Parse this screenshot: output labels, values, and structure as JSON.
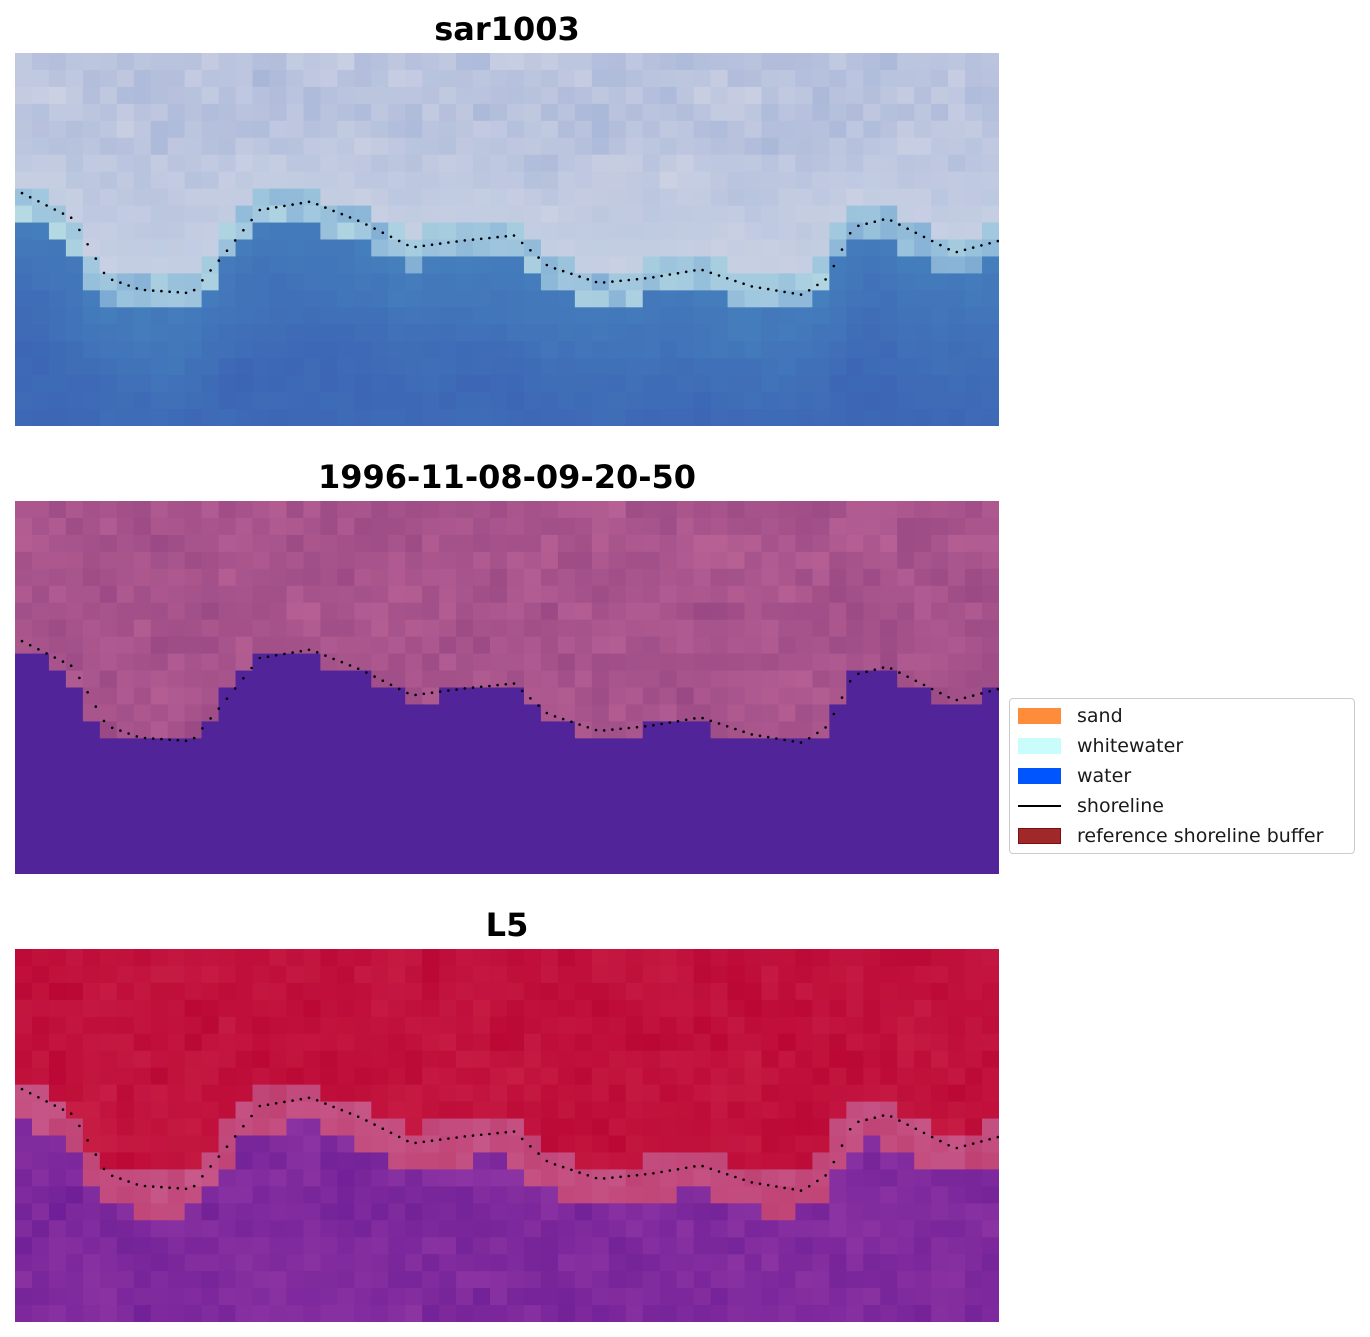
{
  "panels": [
    {
      "title": "sar1003",
      "style": "rgb"
    },
    {
      "title": "1996-11-08-09-20-50",
      "style": "classified"
    },
    {
      "title": "L5",
      "style": "index"
    }
  ],
  "legend": {
    "items": [
      {
        "label": "sand",
        "type": "patch",
        "color": "#ff8c3a"
      },
      {
        "label": "whitewater",
        "type": "patch",
        "color": "#c8fdfb"
      },
      {
        "label": "water",
        "type": "patch",
        "color": "#0055ff"
      },
      {
        "label": "shoreline",
        "type": "line",
        "color": "#000000"
      },
      {
        "label": "reference shoreline buffer",
        "type": "patch",
        "color": "#a02828"
      }
    ]
  },
  "colors": {
    "classified_land": "#9e4a86",
    "classified_water": "#52249a",
    "index_land": "#c0143c",
    "index_water": "#7a2290"
  }
}
